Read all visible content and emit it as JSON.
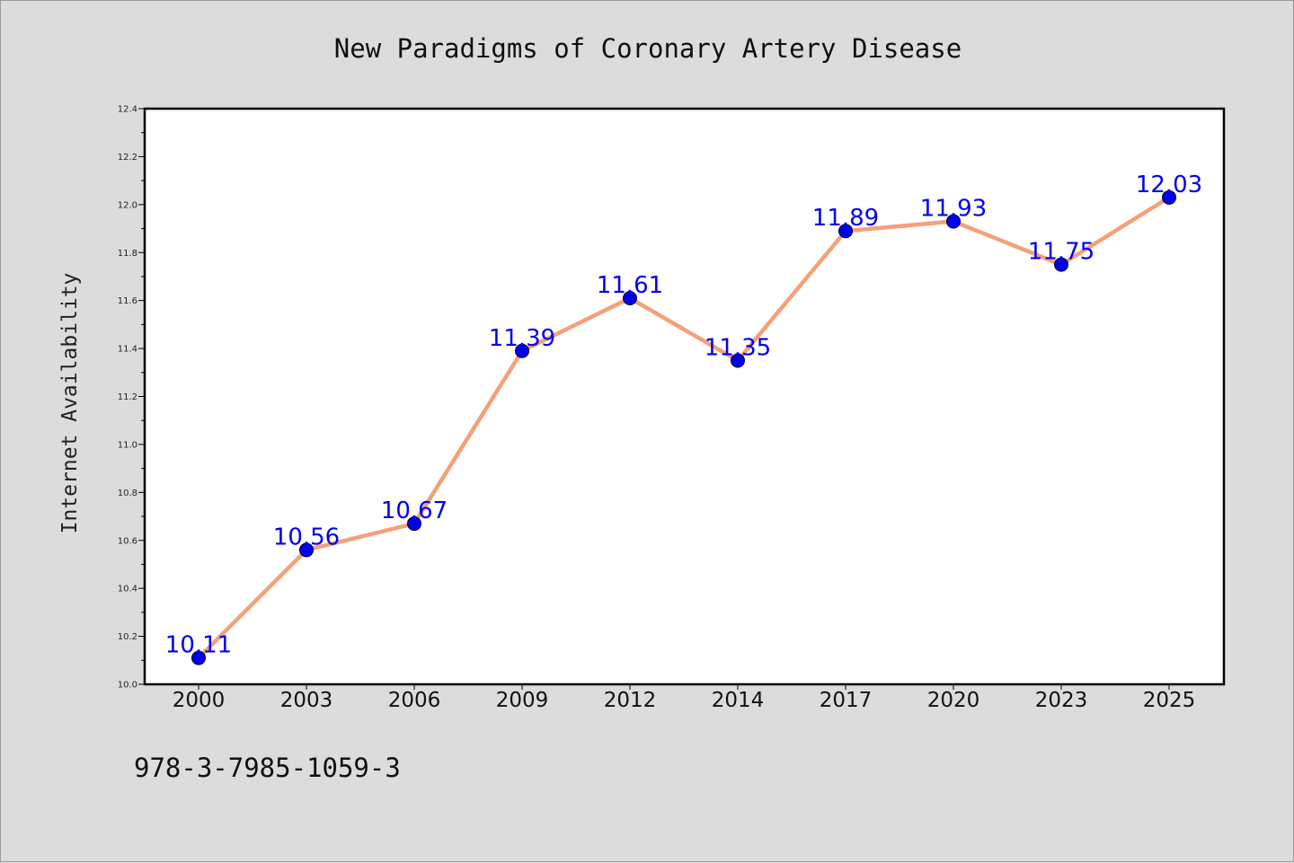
{
  "chart_data": {
    "type": "line",
    "title": "New Paradigms of Coronary Artery Disease",
    "xlabel": "",
    "ylabel": "Internet Availability",
    "categories": [
      "2000",
      "2003",
      "2006",
      "2009",
      "2012",
      "2014",
      "2017",
      "2020",
      "2023",
      "2025"
    ],
    "series": [
      {
        "values": [
          10.11,
          10.56,
          10.67,
          11.39,
          11.61,
          11.35,
          11.89,
          11.93,
          11.75,
          12.03
        ],
        "labels": [
          "10.11",
          "10.56",
          "10.67",
          "11.39",
          "11.61",
          "11.35",
          "11.89",
          "11.93",
          "11.75",
          "12.03"
        ],
        "line_color": "#f4a07a",
        "marker_color": "#0000ee"
      }
    ],
    "ylim": [
      10.0,
      12.4
    ],
    "yticks": [
      "10.0",
      "10.2",
      "10.4",
      "10.6",
      "10.8",
      "11.0",
      "11.2",
      "11.4",
      "11.6",
      "11.8",
      "12.0",
      "12.2",
      "12.4"
    ],
    "grid": false,
    "data_label_color": "#0000ee"
  },
  "footer": {
    "code": "978-3-7985-1059-3"
  }
}
